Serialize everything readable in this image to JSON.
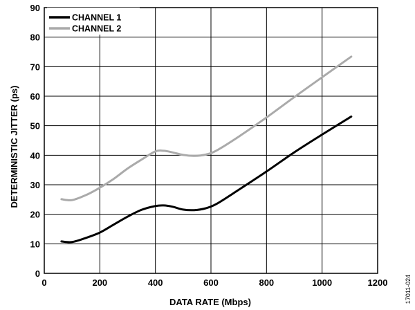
{
  "chart_data": {
    "type": "line",
    "xlabel": "DATA RATE (Mbps)",
    "ylabel": "DETERMINISTIC JITTER (ps)",
    "xlim": [
      0,
      1200
    ],
    "ylim": [
      0,
      90
    ],
    "x_ticks": [
      0,
      200,
      400,
      600,
      800,
      1000,
      1200
    ],
    "y_ticks": [
      0,
      10,
      20,
      30,
      40,
      50,
      60,
      70,
      80,
      90
    ],
    "grid": true,
    "legend_position": "top-left",
    "series": [
      {
        "name": "CHANNEL 1",
        "color": "#000000",
        "x": [
          62,
          100,
          150,
          200,
          250,
          300,
          350,
          400,
          430,
          460,
          500,
          540,
          580,
          620,
          700,
          800,
          900,
          1000,
          1105
        ],
        "y": [
          10.8,
          10.6,
          12,
          13.8,
          16.5,
          19.2,
          21.5,
          22.8,
          23,
          22.6,
          21.6,
          21.4,
          22,
          23.5,
          28.3,
          34.5,
          41,
          47,
          53.1
        ]
      },
      {
        "name": "CHANNEL 2",
        "color": "#aaaaaa",
        "x": [
          62,
          100,
          150,
          200,
          250,
          300,
          350,
          400,
          430,
          460,
          500,
          540,
          580,
          620,
          700,
          800,
          900,
          1000,
          1105
        ],
        "y": [
          25.1,
          24.8,
          26.5,
          29,
          32,
          35.5,
          38.5,
          41.3,
          41.5,
          41,
          40.1,
          39.8,
          40.2,
          41.6,
          46.3,
          52.8,
          59.7,
          66.4,
          73.4
        ]
      }
    ]
  },
  "figure_code": "17011-024"
}
